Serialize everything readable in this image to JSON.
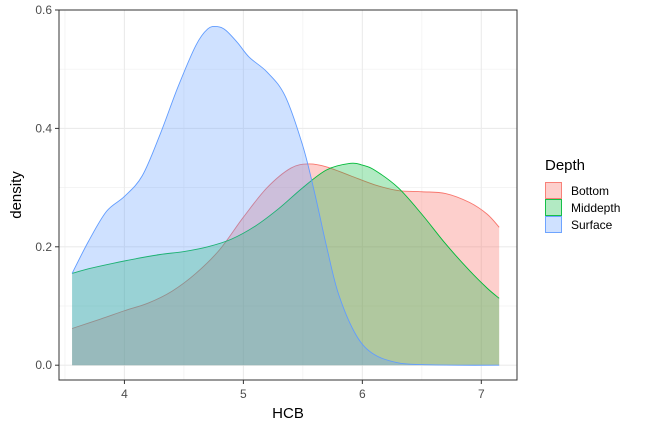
{
  "chart_data": {
    "type": "area",
    "xlabel": "HCB",
    "ylabel": "density",
    "xlim": [
      3.45,
      7.3
    ],
    "ylim": [
      -0.025,
      0.6
    ],
    "x_ticks": [
      4,
      5,
      6,
      7
    ],
    "x_tick_labels": [
      "4",
      "5",
      "6",
      "7"
    ],
    "y_ticks": [
      0.0,
      0.2,
      0.4,
      0.6
    ],
    "y_tick_labels": [
      "0.0",
      "0.2",
      "0.4",
      "0.6"
    ],
    "grid": true,
    "legend": {
      "title": "Depth",
      "position": "right"
    },
    "series": [
      {
        "name": "Bottom",
        "line_color": "#F8766D",
        "fill_color": "rgba(248,118,109,0.35)",
        "x": [
          3.56,
          3.8,
          4.0,
          4.2,
          4.4,
          4.6,
          4.8,
          5.0,
          5.2,
          5.4,
          5.55,
          5.7,
          5.9,
          6.1,
          6.3,
          6.5,
          6.7,
          6.9,
          7.05,
          7.15
        ],
        "y": [
          0.062,
          0.078,
          0.092,
          0.105,
          0.125,
          0.155,
          0.195,
          0.25,
          0.3,
          0.333,
          0.34,
          0.335,
          0.32,
          0.305,
          0.295,
          0.293,
          0.29,
          0.275,
          0.255,
          0.233
        ]
      },
      {
        "name": "Middepth",
        "line_color": "#00BA38",
        "fill_color": "rgba(0,186,56,0.30)",
        "x": [
          3.56,
          3.7,
          3.9,
          4.1,
          4.3,
          4.5,
          4.7,
          4.9,
          5.1,
          5.3,
          5.5,
          5.7,
          5.9,
          6.0,
          6.1,
          6.3,
          6.5,
          6.7,
          6.9,
          7.05,
          7.15
        ],
        "y": [
          0.155,
          0.163,
          0.172,
          0.18,
          0.187,
          0.192,
          0.2,
          0.213,
          0.235,
          0.265,
          0.3,
          0.33,
          0.341,
          0.338,
          0.33,
          0.3,
          0.255,
          0.205,
          0.16,
          0.13,
          0.113
        ]
      },
      {
        "name": "Surface",
        "line_color": "#619CFF",
        "fill_color": "rgba(97,156,255,0.30)",
        "x": [
          3.56,
          3.7,
          3.85,
          4.0,
          4.15,
          4.3,
          4.45,
          4.6,
          4.7,
          4.78,
          4.85,
          4.95,
          5.05,
          5.2,
          5.35,
          5.5,
          5.6,
          5.7,
          5.8,
          5.95,
          6.1,
          6.3,
          6.5,
          6.8,
          7.15
        ],
        "y": [
          0.155,
          0.21,
          0.26,
          0.285,
          0.32,
          0.39,
          0.47,
          0.54,
          0.568,
          0.572,
          0.566,
          0.545,
          0.52,
          0.495,
          0.455,
          0.37,
          0.29,
          0.2,
          0.12,
          0.05,
          0.018,
          0.004,
          0.001,
          0.0,
          0.0
        ]
      }
    ]
  }
}
